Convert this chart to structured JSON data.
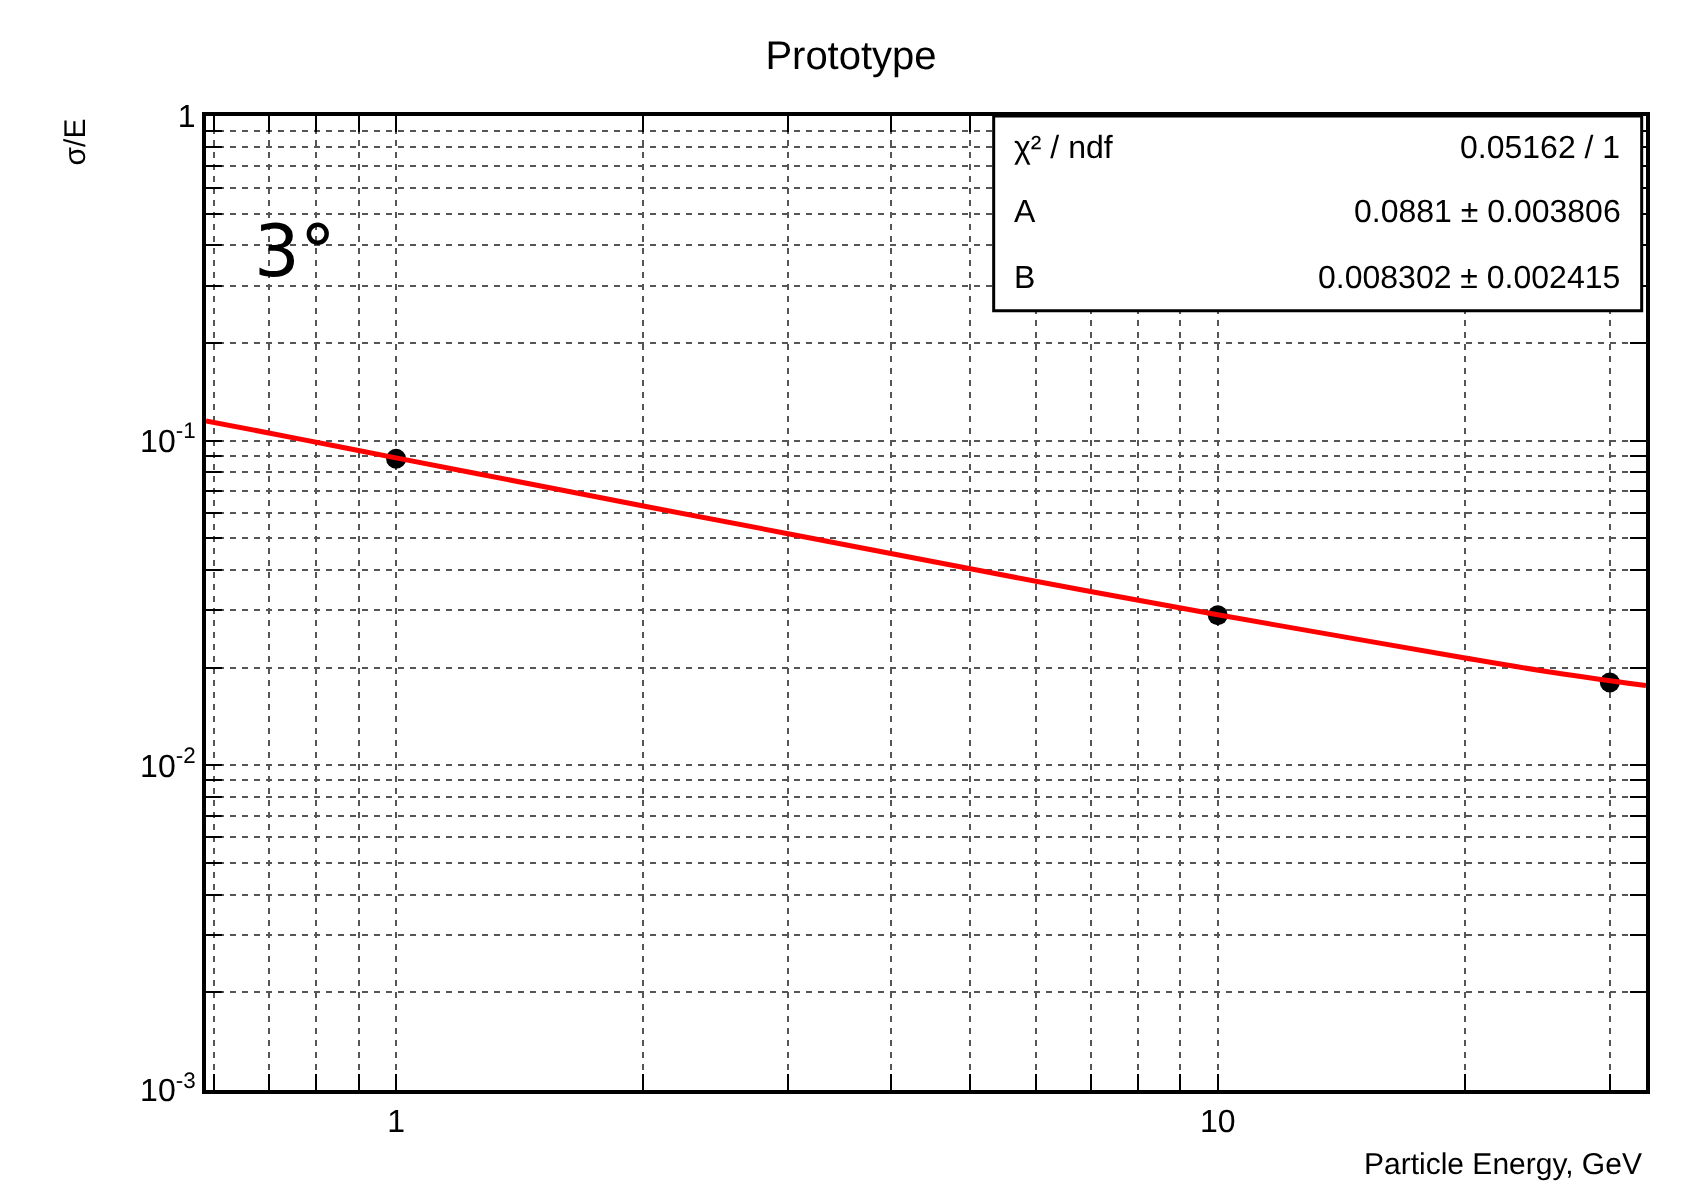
{
  "chart_data": {
    "type": "scatter",
    "title": "Prototype",
    "xlabel": "Particle Energy, GeV",
    "ylabel": "σ/E",
    "log": "xy",
    "grid": true,
    "marker": "circle",
    "x": [
      1,
      10,
      30
    ],
    "series": [
      {
        "color": "#000000",
        "values": [
          0.088,
          0.029,
          0.018
        ]
      },
      {
        "type": "line",
        "color": "#ff0000",
        "marker": "none",
        "x": [
          0.587,
          0.7,
          0.85,
          1,
          1.5,
          2,
          3,
          5,
          7,
          10,
          15,
          20,
          25,
          33.2
        ],
        "values": [
          0.115,
          0.1056,
          0.0959,
          0.0885,
          0.0725,
          0.0629,
          0.0517,
          0.0403,
          0.0343,
          0.0291,
          0.0243,
          0.0214,
          0.0195,
          0.0176
        ]
      }
    ],
    "xlim": [
      0.587,
      33.2
    ],
    "ylim": [
      0.001,
      1
    ],
    "xticks": [
      {
        "value": 0.6,
        "label": null
      },
      {
        "value": 0.7,
        "label": null
      },
      {
        "value": 0.8,
        "label": null
      },
      {
        "value": 0.9,
        "label": null
      },
      1,
      {
        "value": 2,
        "label": null
      },
      {
        "value": 3,
        "label": null
      },
      {
        "value": 4,
        "label": null
      },
      {
        "value": 5,
        "label": null
      },
      {
        "value": 6,
        "label": null
      },
      {
        "value": 7,
        "label": null
      },
      {
        "value": 8,
        "label": null
      },
      {
        "value": 9,
        "label": null
      },
      10,
      {
        "value": 20,
        "label": null
      },
      {
        "value": 30,
        "label": null
      }
    ],
    "yticks": [
      {
        "value": 0.001,
        "label": "10$^{-3}$"
      },
      {
        "value": 0.002,
        "label": null
      },
      {
        "value": 0.003,
        "label": null
      },
      {
        "value": 0.004,
        "label": null
      },
      {
        "value": 0.005,
        "label": null
      },
      {
        "value": 0.006,
        "label": null
      },
      {
        "value": 0.007,
        "label": null
      },
      {
        "value": 0.008,
        "label": null
      },
      {
        "value": 0.009,
        "label": null
      },
      {
        "value": 0.01,
        "label": "10$^{-2}$"
      },
      {
        "value": 0.02,
        "label": null
      },
      {
        "value": 0.03,
        "label": null
      },
      {
        "value": 0.04,
        "label": null
      },
      {
        "value": 0.05,
        "label": null
      },
      {
        "value": 0.06,
        "label": null
      },
      {
        "value": 0.07,
        "label": null
      },
      {
        "value": 0.08,
        "label": null
      },
      {
        "value": 0.09,
        "label": null
      },
      {
        "value": 0.1,
        "label": "10$^{-1}$"
      },
      {
        "value": 0.2,
        "label": null
      },
      {
        "value": 0.3,
        "label": null
      },
      {
        "value": 0.4,
        "label": null
      },
      {
        "value": 0.5,
        "label": null
      },
      {
        "value": 0.6,
        "label": null
      },
      {
        "value": 0.7,
        "label": null
      },
      {
        "value": 0.8,
        "label": null
      },
      {
        "value": 0.9,
        "label": null
      },
      1
    ],
    "annotations": [
      "χ² / ndf",
      "0.05162 / 1",
      "A",
      "0.0881 ± 0.003806",
      "B",
      "0.008302 ± 0.002415",
      "3°"
    ]
  }
}
